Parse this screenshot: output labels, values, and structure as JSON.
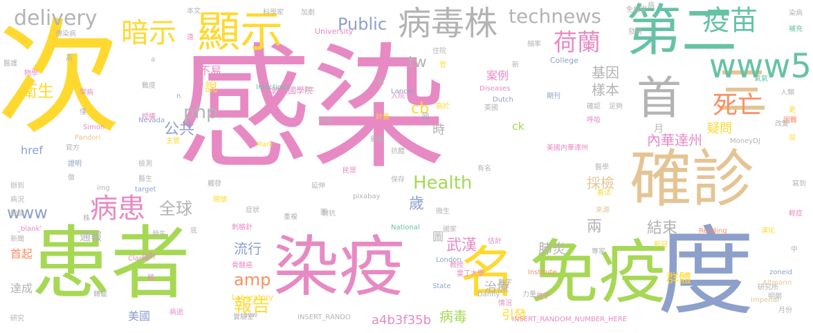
{
  "colors": {
    "pink": "#e78ac3",
    "green": "#a6d854",
    "yellow": "#ffd92f",
    "tan": "#e5c494",
    "gray": "#b3b3b3",
    "blue": "#8da0cb",
    "teal": "#66c2a5",
    "orange": "#fc8d62"
  },
  "words": [
    {
      "text": "感染",
      "color": "pink"
    },
    {
      "text": "次",
      "color": "yellow"
    },
    {
      "text": "患者",
      "color": "green"
    },
    {
      "text": "染疫",
      "color": "pink"
    },
    {
      "text": "度",
      "color": "blue"
    },
    {
      "text": "免疫",
      "color": "green"
    },
    {
      "text": "名",
      "color": "yellow"
    },
    {
      "text": "確診",
      "color": "tan"
    },
    {
      "text": "第二",
      "color": "teal"
    },
    {
      "text": "首",
      "color": "gray"
    },
    {
      "text": "三",
      "color": "tan"
    },
    {
      "text": "顯示",
      "color": "yellow"
    },
    {
      "text": "病毒株",
      "color": "gray"
    },
    {
      "text": "疫苗",
      "color": "teal"
    },
    {
      "text": "www5",
      "color": "teal"
    },
    {
      "text": "暗示",
      "color": "yellow"
    },
    {
      "text": "死亡",
      "color": "orange"
    },
    {
      "text": "荷蘭",
      "color": "pink"
    },
    {
      "text": "technews",
      "color": "gray"
    },
    {
      "text": "delivery",
      "color": "gray"
    },
    {
      "text": "Public",
      "color": "blue"
    },
    {
      "text": "病患",
      "color": "pink"
    },
    {
      "text": "衛生",
      "color": "yellow"
    },
    {
      "text": "www",
      "color": "blue"
    },
    {
      "text": "php",
      "color": "gray"
    },
    {
      "text": "全球",
      "color": "gray"
    },
    {
      "text": "公共",
      "color": "blue"
    },
    {
      "text": "Health",
      "color": "green"
    },
    {
      "text": "amp",
      "color": "orange"
    },
    {
      "text": "流行",
      "color": "blue"
    },
    {
      "text": "報告",
      "color": "yellow"
    },
    {
      "text": "基因",
      "color": "gray"
    },
    {
      "text": "樣本",
      "color": "gray"
    },
    {
      "text": "內華達州",
      "color": "pink"
    },
    {
      "text": "疑問",
      "color": "yellow"
    },
    {
      "text": "結束",
      "color": "gray"
    },
    {
      "text": "採檢",
      "color": "tan"
    },
    {
      "text": "兩",
      "color": "gray"
    },
    {
      "text": "武漢",
      "color": "pink"
    },
    {
      "text": "肺炎",
      "color": "gray"
    },
    {
      "text": "治療",
      "color": "gray"
    },
    {
      "text": "群體",
      "color": "yellow"
    },
    {
      "text": "引發",
      "color": "yellow"
    },
    {
      "text": "病毒",
      "color": "green"
    },
    {
      "text": "a4b3f35b",
      "color": "pink"
    },
    {
      "text": "歲",
      "color": "blue"
    },
    {
      "text": "cb",
      "color": "yellow"
    },
    {
      "text": "tw",
      "color": "gray"
    },
    {
      "text": "說",
      "color": "yellow"
    },
    {
      "text": "案例",
      "color": "pink"
    },
    {
      "text": "時",
      "color": "gray"
    },
    {
      "text": "ck",
      "color": "green"
    },
    {
      "text": "美國",
      "color": "blue"
    },
    {
      "text": "達成",
      "color": "gray"
    },
    {
      "text": "首起",
      "color": "orange"
    },
    {
      "text": "通報",
      "color": "gray"
    },
    {
      "text": "href",
      "color": "blue"
    },
    {
      "text": "不易",
      "color": "pink"
    },
    {
      "text": "倫敦帝國學院",
      "color": "pink"
    },
    {
      "text": "Laboratory",
      "color": "yellow"
    },
    {
      "text": "INSERT_RANDOM_NUMBER_HERE",
      "color": "pink"
    },
    {
      "text": "INSERT_RANDO",
      "color": "gray"
    },
    {
      "text": "Infectious",
      "color": "teal"
    },
    {
      "text": "Diseases",
      "color": "pink"
    },
    {
      "text": "Lancet",
      "color": "blue"
    },
    {
      "text": "Dutch",
      "color": "blue"
    },
    {
      "text": "University",
      "color": "pink"
    },
    {
      "text": "College",
      "color": "blue"
    },
    {
      "text": "科學家",
      "color": "gray"
    },
    {
      "text": "加劇",
      "color": "gray"
    },
    {
      "text": "免疫學",
      "color": "gray"
    },
    {
      "text": "染病",
      "color": "gray"
    },
    {
      "text": "補充",
      "color": "teal"
    },
    {
      "text": "英國",
      "color": "gray"
    },
    {
      "text": "美國內華達州",
      "color": "pink"
    },
    {
      "text": "刺胳針",
      "color": "pink"
    },
    {
      "text": "雷丁大學",
      "color": "pink"
    },
    {
      "text": "實驗室",
      "color": "gray"
    },
    {
      "text": "骨髓癌",
      "color": "pink"
    },
    {
      "text": "研究所",
      "color": "gray"
    },
    {
      "text": "MoneyDJ",
      "color": "gray"
    },
    {
      "text": "zoneid",
      "color": "blue"
    },
    {
      "text": "Altmann",
      "color": "tan"
    },
    {
      "text": "Reading",
      "color": "orange"
    },
    {
      "text": "Imperial",
      "color": "tan"
    },
    {
      "text": "Institute",
      "color": "orange"
    },
    {
      "text": "London",
      "color": "blue"
    },
    {
      "text": "National",
      "color": "teal"
    },
    {
      "text": "State",
      "color": "blue"
    },
    {
      "text": "Danny",
      "color": "gray"
    },
    {
      "text": "Clarke",
      "color": "pink"
    },
    {
      "text": "Simon",
      "color": "pink"
    },
    {
      "text": "Nevada",
      "color": "blue"
    },
    {
      "text": "Pandori",
      "color": "tan"
    },
    {
      "text": "Mark",
      "color": "yellow"
    },
    {
      "text": "pixabay",
      "color": "gray"
    },
    {
      "text": "_blank'",
      "color": "pink"
    },
    {
      "text": "target",
      "color": "blue"
    },
    {
      "text": "img",
      "color": "gray"
    },
    {
      "text": "src",
      "color": "gray"
    },
    {
      "text": "avw",
      "color": "gray"
    },
    {
      "text": "國家",
      "color": "gray"
    },
    {
      "text": "估計",
      "color": "pink"
    },
    {
      "text": "教授",
      "color": "pink"
    },
    {
      "text": "專家",
      "color": "gray"
    },
    {
      "text": "數字",
      "color": "gray"
    },
    {
      "text": "力量",
      "color": "gray"
    },
    {
      "text": "男子",
      "color": "pink"
    },
    {
      "text": "情況",
      "color": "pink"
    },
    {
      "text": "病況",
      "color": "gray"
    },
    {
      "text": "數據",
      "color": "gray"
    },
    {
      "text": "新聞",
      "color": "gray"
    },
    {
      "text": "研究",
      "color": "gray"
    },
    {
      "text": "轉載",
      "color": "gray"
    },
    {
      "text": "病逝",
      "color": "pink"
    },
    {
      "text": "發生",
      "color": "gray"
    },
    {
      "text": "比對",
      "color": "pink"
    },
    {
      "text": "檢測",
      "color": "gray"
    },
    {
      "text": "醫生",
      "color": "gray"
    },
    {
      "text": "主管",
      "color": "yellow"
    },
    {
      "text": "官方",
      "color": "gray"
    },
    {
      "text": "證明",
      "color": "blue"
    },
    {
      "text": "做",
      "color": "gray"
    },
    {
      "text": "辦到",
      "color": "gray"
    },
    {
      "text": "觸發",
      "color": "gray"
    },
    {
      "text": "開頭",
      "color": "yellow"
    },
    {
      "text": "症狀",
      "color": "gray"
    },
    {
      "text": "重複",
      "color": "gray"
    },
    {
      "text": "延伸",
      "color": "gray"
    },
    {
      "text": "民眾",
      "color": "pink"
    },
    {
      "text": "保存",
      "color": "gray"
    },
    {
      "text": "看法",
      "color": "yellow"
    },
    {
      "text": "來源",
      "color": "tan"
    },
    {
      "text": "新冠",
      "color": "yellow"
    },
    {
      "text": "演化",
      "color": "yellow"
    },
    {
      "text": "輕症",
      "color": "pink"
    },
    {
      "text": "月份",
      "color": "gray"
    },
    {
      "text": "明朗",
      "color": "gray"
    },
    {
      "text": "寫到",
      "color": "gray"
    },
    {
      "text": "益",
      "color": "yellow"
    },
    {
      "text": "困難",
      "color": "orange"
    },
    {
      "text": "改變",
      "color": "gray"
    },
    {
      "text": "更",
      "color": "yellow"
    },
    {
      "text": "人類",
      "color": "gray"
    },
    {
      "text": "氣氣",
      "color": "teal"
    },
    {
      "text": "足夠",
      "color": "gray"
    },
    {
      "text": "期刊",
      "color": "blue"
    },
    {
      "text": "確認",
      "color": "gray"
    },
    {
      "text": "呼吸",
      "color": "pink"
    },
    {
      "text": "醫學",
      "color": "gray"
    },
    {
      "text": "有名",
      "color": "gray"
    },
    {
      "text": "抗體",
      "color": "gray"
    },
    {
      "text": "影響",
      "color": "gray"
    },
    {
      "text": "計畫",
      "color": "yellow"
    },
    {
      "text": "高於",
      "color": "yellow"
    },
    {
      "text": "入院",
      "color": "pink"
    },
    {
      "text": "授權",
      "color": "pink"
    },
    {
      "text": "難度",
      "color": "gray"
    },
    {
      "text": "罕病",
      "color": "pink"
    },
    {
      "text": "物學",
      "color": "pink"
    },
    {
      "text": "醫護",
      "color": "gray"
    },
    {
      "text": "傳染病",
      "color": "gray"
    },
    {
      "text": "頻率",
      "color": "gray"
    },
    {
      "text": "發病",
      "color": "gray"
    },
    {
      "text": "微生",
      "color": "gray"
    },
    {
      "text": "對抗",
      "color": "gray"
    },
    {
      "text": "住院",
      "color": "gray"
    },
    {
      "text": "快速",
      "color": "gray"
    },
    {
      "text": "本文",
      "color": "gray"
    },
    {
      "text": "遠",
      "color": "pink"
    },
    {
      "text": "高",
      "color": "gray"
    },
    {
      "text": "僅",
      "color": "gray"
    },
    {
      "text": "株",
      "color": "gray"
    },
    {
      "text": "底",
      "color": "gray"
    },
    {
      "text": "回",
      "color": "blue"
    },
    {
      "text": "登",
      "color": "yellow"
    },
    {
      "text": "例",
      "color": "gray"
    },
    {
      "text": "新",
      "color": "gray"
    },
    {
      "text": "病",
      "color": "gray"
    },
    {
      "text": "圓",
      "color": "gray"
    },
    {
      "text": "極",
      "color": "pink"
    },
    {
      "text": "中",
      "color": "gray"
    },
    {
      "text": "月",
      "color": "gray"
    },
    {
      "text": "圖",
      "color": "gray"
    },
    {
      "text": "a",
      "color": "gray"
    },
    {
      "text": "n",
      "color": "blue"
    }
  ]
}
